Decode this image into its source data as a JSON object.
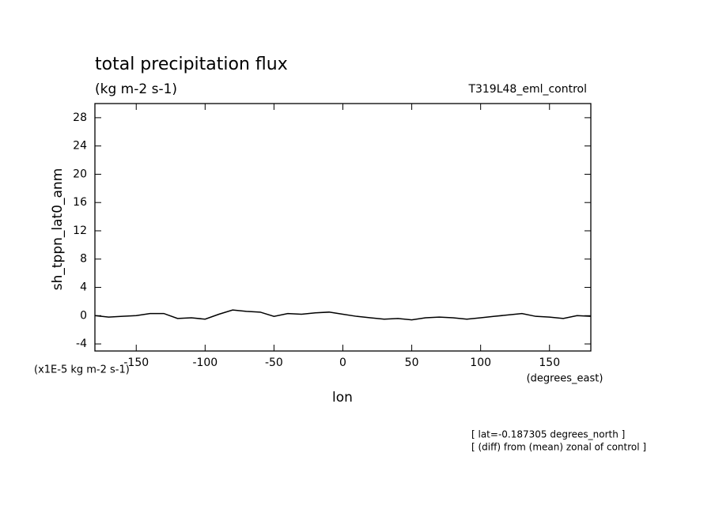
{
  "chart_data": {
    "type": "line",
    "title": "total precipitation flux",
    "subtitle": "(kg m-2 s-1)",
    "experiment": "T319L48_eml_control",
    "y_label": "sh_tppn_lat0_anm",
    "y_units": "(x1E-5 kg m-2 s-1)",
    "x_label": "lon",
    "x_units": "(degrees_east)",
    "notes": [
      "[ lat=-0.187305 degrees_north ]",
      "[ (diff) from (mean) zonal of control ]"
    ],
    "x": [
      -180,
      -170,
      -160,
      -150,
      -140,
      -130,
      -120,
      -110,
      -100,
      -90,
      -80,
      -70,
      -60,
      -50,
      -40,
      -30,
      -20,
      -10,
      0,
      10,
      20,
      30,
      40,
      50,
      60,
      70,
      80,
      90,
      100,
      110,
      120,
      130,
      140,
      150,
      160,
      170,
      180
    ],
    "series": [
      {
        "color": "#000000",
        "values": [
          0,
          -0.2,
          -0.1,
          0,
          0.3,
          0.3,
          -0.4,
          -0.3,
          -0.5,
          0.2,
          0.8,
          0.6,
          0.5,
          -0.1,
          0.3,
          0.2,
          0.4,
          0.5,
          0.2,
          -0.1,
          -0.3,
          -0.5,
          -0.4,
          -0.6,
          -0.3,
          -0.2,
          -0.3,
          -0.5,
          -0.3,
          -0.1,
          0.1,
          0.3,
          -0.1,
          -0.2,
          -0.4,
          0,
          -0.1
        ]
      }
    ],
    "xlim": [
      -180,
      180
    ],
    "ylim": [
      -5,
      30
    ],
    "xticks": [
      -150,
      -100,
      -50,
      0,
      50,
      100,
      150
    ],
    "yticks": [
      -4,
      0,
      4,
      8,
      12,
      16,
      20,
      24,
      28
    ]
  }
}
